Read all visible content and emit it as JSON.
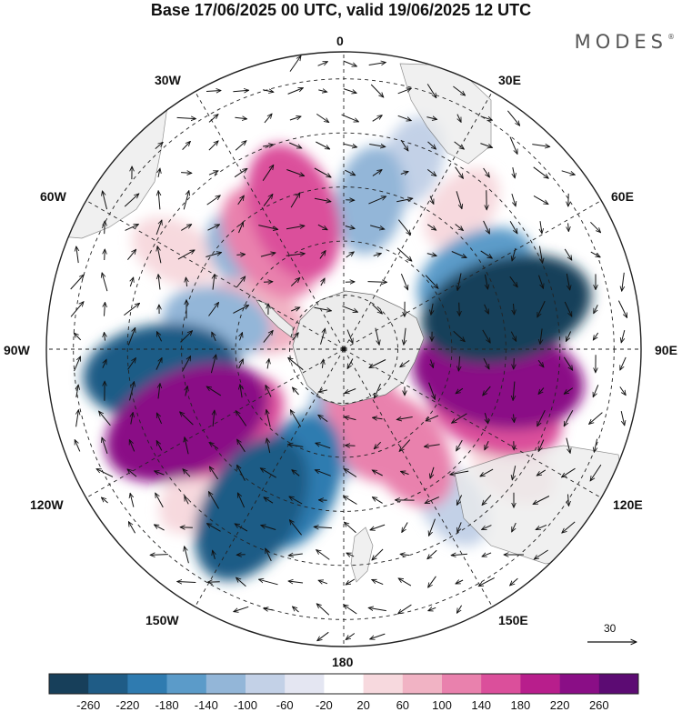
{
  "title": "Base 17/06/2025 00 UTC, valid 19/06/2025 12 UTC",
  "brand": "MODES",
  "brand_mark": "®",
  "longitude_labels": {
    "lon_0": "0",
    "lon_30e": "30E",
    "lon_60e": "60E",
    "lon_90e": "90E",
    "lon_120e": "120E",
    "lon_150e": "150E",
    "lon_180": "180",
    "lon_150w": "150W",
    "lon_120w": "120W",
    "lon_90w": "90W",
    "lon_60w": "60W",
    "lon_30w": "30W"
  },
  "vector_scale_label": "30",
  "colorbar": {
    "ticks": [
      "-260",
      "-220",
      "-180",
      "-140",
      "-100",
      "-60",
      "-20",
      "20",
      "60",
      "100",
      "140",
      "180",
      "220",
      "260"
    ],
    "colors": [
      "#173f5a",
      "#1f5c86",
      "#2f7bb0",
      "#5b9bc9",
      "#93b6d8",
      "#c3d1e7",
      "#e4e6f2",
      "#ffffff",
      "#f7d9de",
      "#f1b3c4",
      "#e981ad",
      "#db4f9b",
      "#b81e8c",
      "#8a0e86",
      "#5c0b73"
    ]
  },
  "anomaly_blobs": [
    {
      "lon": 100,
      "colat": 29,
      "value": 260
    },
    {
      "lon": 112,
      "colat": 30,
      "value": 180
    },
    {
      "lon": -115,
      "colat": 32,
      "value": 260
    },
    {
      "lon": -122,
      "colat": 27,
      "value": 180
    },
    {
      "lon": -97,
      "colat": 34,
      "value": -220
    },
    {
      "lon": 76,
      "colat": 31,
      "value": -260
    },
    {
      "lon": 60,
      "colat": 28,
      "value": -140
    },
    {
      "lon": -150,
      "colat": 34,
      "value": -220
    },
    {
      "lon": -160,
      "colat": 26,
      "value": -180
    },
    {
      "lon": 148,
      "colat": 22,
      "value": 140
    },
    {
      "lon": 162,
      "colat": 14,
      "value": 140
    },
    {
      "lon": -20,
      "colat": 27,
      "value": 180
    },
    {
      "lon": -35,
      "colat": 24,
      "value": 140
    },
    {
      "lon": -45,
      "colat": 24,
      "value": -100
    },
    {
      "lon": 10,
      "colat": 28,
      "value": -100
    },
    {
      "lon": -70,
      "colat": 18,
      "value": 100
    },
    {
      "lon": -78,
      "colat": 24,
      "value": -100
    },
    {
      "lon": 170,
      "colat": 10,
      "value": -60
    },
    {
      "lon": -178,
      "colat": 14,
      "value": -100
    },
    {
      "lon": 145,
      "colat": 35,
      "value": -60
    },
    {
      "lon": -135,
      "colat": 38,
      "value": 60
    },
    {
      "lon": 40,
      "colat": 34,
      "value": 60
    },
    {
      "lon": -60,
      "colat": 36,
      "value": 60
    },
    {
      "lon": 125,
      "colat": 38,
      "value": 60
    },
    {
      "lon": 20,
      "colat": 37,
      "value": -60
    }
  ]
}
